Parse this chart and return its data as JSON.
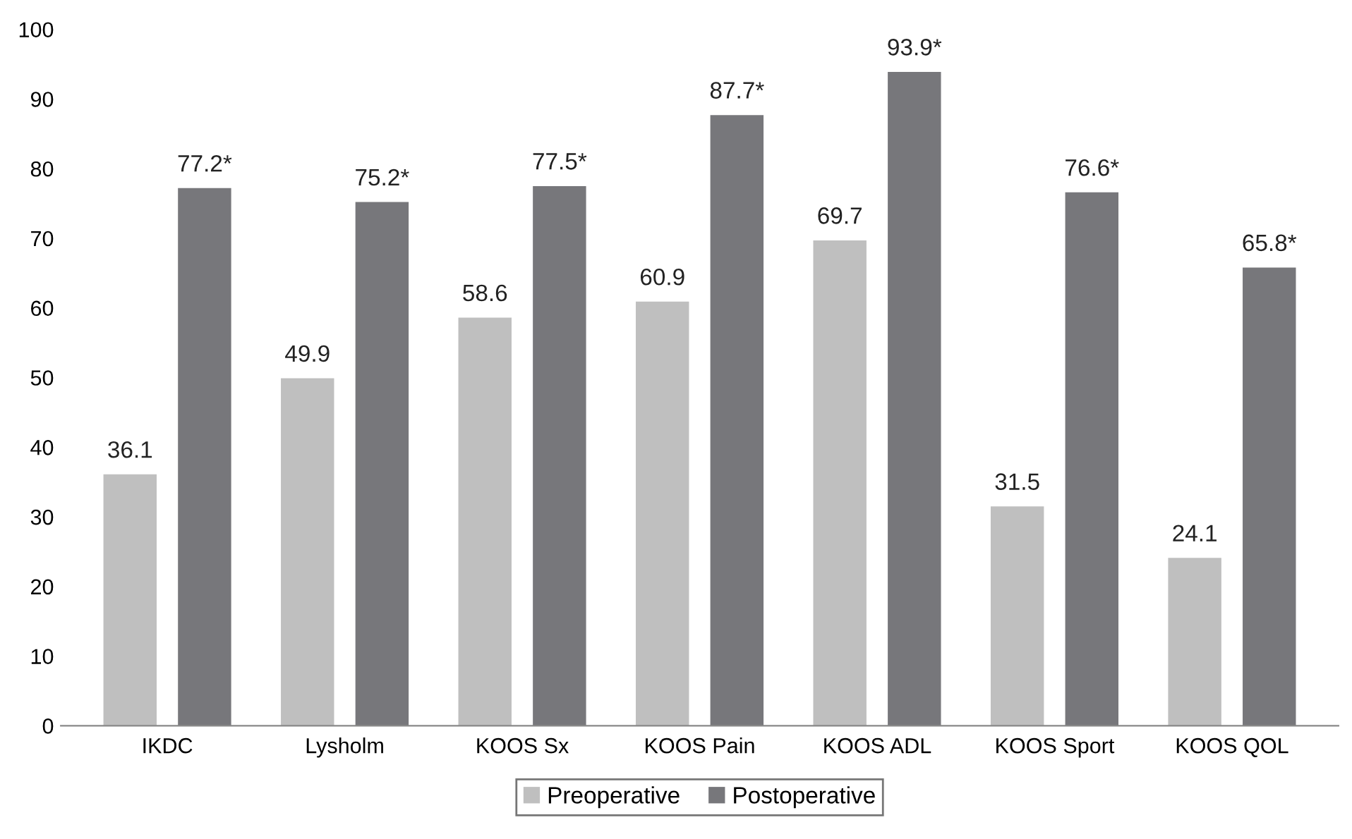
{
  "chart_data": {
    "type": "bar",
    "categories": [
      "IKDC",
      "Lysholm",
      "KOOS Sx",
      "KOOS Pain",
      "KOOS ADL",
      "KOOS Sport",
      "KOOS QOL"
    ],
    "series": [
      {
        "name": "Preoperative",
        "color": "#bfbfbf",
        "values": [
          36.1,
          49.9,
          58.6,
          60.9,
          69.7,
          31.5,
          24.1
        ],
        "value_labels": [
          "36.1",
          "49.9",
          "58.6",
          "60.9",
          "69.7",
          "31.5",
          "24.1"
        ]
      },
      {
        "name": "Postoperative",
        "color": "#77777b",
        "values": [
          77.2,
          75.2,
          77.5,
          87.7,
          93.9,
          76.6,
          65.8
        ],
        "value_labels": [
          "77.2*",
          "75.2*",
          "77.5*",
          "87.7*",
          "93.9*",
          "76.6*",
          "65.8*"
        ]
      }
    ],
    "ylim": [
      0,
      100
    ],
    "yticks": [
      0,
      10,
      20,
      30,
      40,
      50,
      60,
      70,
      80,
      90,
      100
    ],
    "grid": false,
    "legend": "bottom"
  }
}
